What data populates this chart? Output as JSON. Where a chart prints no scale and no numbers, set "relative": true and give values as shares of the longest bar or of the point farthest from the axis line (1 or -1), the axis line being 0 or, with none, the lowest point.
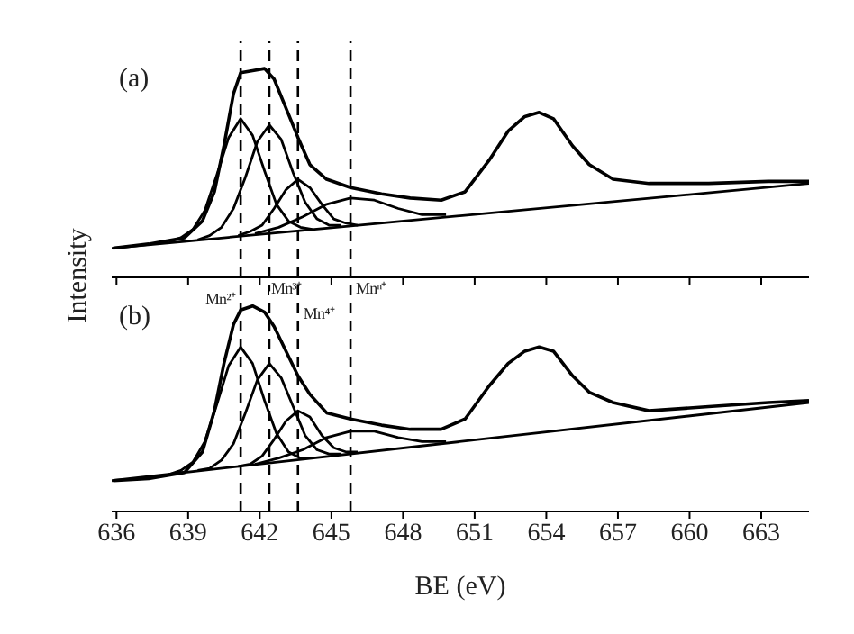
{
  "chart_data": [
    {
      "type": "line",
      "relative": true,
      "ylabel": "Intensity",
      "annotations": [
        "(a)"
      ],
      "xlim": [
        635.8,
        665
      ],
      "xticks": [
        636,
        639,
        642,
        645,
        648,
        651,
        654,
        657,
        660,
        663
      ],
      "tick_labels": false,
      "ref_lines": [
        {
          "axis": "x",
          "value": 641.2,
          "line_style": "dashed",
          "color": "#000000"
        },
        {
          "axis": "x",
          "value": 642.4,
          "line_style": "dashed",
          "color": "#000000"
        },
        {
          "axis": "x",
          "value": 643.6,
          "line_style": "dashed",
          "color": "#000000"
        },
        {
          "axis": "x",
          "value": 645.8,
          "line_style": "dashed",
          "color": "#000000"
        }
      ],
      "series": [
        {
          "color": "#000000",
          "x": [
            635.86,
            637.35,
            638.85,
            639.6,
            640.1,
            640.5,
            640.9,
            641.2,
            641.7,
            642.2,
            642.6,
            643.1,
            643.6,
            644.1,
            644.8,
            645.8,
            647.1,
            648.3,
            649.6,
            650.6,
            651.6,
            652.4,
            653.1,
            653.7,
            654.3,
            655.1,
            655.8,
            656.8,
            658.3,
            660.8,
            663.3,
            665
          ],
          "values": [
            0.14,
            0.16,
            0.19,
            0.27,
            0.41,
            0.63,
            0.88,
            0.98,
            0.99,
            1,
            0.95,
            0.81,
            0.67,
            0.54,
            0.47,
            0.43,
            0.4,
            0.38,
            0.37,
            0.41,
            0.56,
            0.7,
            0.77,
            0.79,
            0.76,
            0.63,
            0.54,
            0.47,
            0.45,
            0.45,
            0.46,
            0.46
          ]
        },
        {
          "color": "#000000",
          "x": [
            638.2,
            638.7,
            639.2,
            639.7,
            640.2,
            640.7,
            641.2,
            641.7,
            642.2,
            642.7,
            643.2,
            643.7,
            644.2
          ],
          "values": [
            0.17,
            0.19,
            0.23,
            0.32,
            0.49,
            0.67,
            0.76,
            0.68,
            0.51,
            0.35,
            0.27,
            0.24,
            0.23
          ]
        },
        {
          "color": "#000000",
          "x": [
            639.4,
            639.9,
            640.4,
            640.9,
            641.4,
            641.9,
            642.4,
            642.9,
            643.4,
            643.9,
            644.4,
            644.9,
            645.4
          ],
          "values": [
            0.18,
            0.2,
            0.24,
            0.33,
            0.48,
            0.65,
            0.73,
            0.66,
            0.5,
            0.36,
            0.28,
            0.25,
            0.25
          ]
        },
        {
          "color": "#000000",
          "x": [
            641.1,
            641.6,
            642.1,
            642.6,
            643.1,
            643.6,
            644.1,
            644.6,
            645.1,
            645.6,
            646.1
          ],
          "values": [
            0.2,
            0.22,
            0.25,
            0.33,
            0.42,
            0.47,
            0.43,
            0.35,
            0.28,
            0.26,
            0.25
          ]
        },
        {
          "color": "#000000",
          "x": [
            641.8,
            642.8,
            643.8,
            644.8,
            645.8,
            646.8,
            647.8,
            648.8,
            649.8
          ],
          "values": [
            0.21,
            0.24,
            0.29,
            0.35,
            0.38,
            0.37,
            0.33,
            0.3,
            0.3
          ]
        },
        {
          "color": "#000000",
          "x": [
            635.8,
            665
          ],
          "values": [
            0.14,
            0.45
          ]
        }
      ]
    },
    {
      "type": "line",
      "relative": true,
      "xlabel": "BE (eV)",
      "annotations": [
        "(b)"
      ],
      "xlim": [
        635.8,
        665
      ],
      "xticks": [
        636,
        639,
        642,
        645,
        648,
        651,
        654,
        657,
        660,
        663
      ],
      "tick_labels": "x",
      "ref_lines": [
        {
          "axis": "x",
          "value": 641.2,
          "label": "Mn²⁺",
          "line_style": "dashed",
          "color": "#000000"
        },
        {
          "axis": "x",
          "value": 642.4,
          "label": "Mn³⁺",
          "line_style": "dashed",
          "color": "#000000"
        },
        {
          "axis": "x",
          "value": 643.6,
          "label": "Mn⁴⁺",
          "line_style": "dashed",
          "color": "#000000"
        },
        {
          "axis": "x",
          "value": 645.8,
          "label": "Mnⁿ⁺",
          "line_style": "dashed",
          "color": "#000000"
        }
      ],
      "series": [
        {
          "color": "#000000",
          "x": [
            635.86,
            637.35,
            638.85,
            639.6,
            640.1,
            640.5,
            640.9,
            641.2,
            641.7,
            642.2,
            642.6,
            643.1,
            643.6,
            644.1,
            644.8,
            645.8,
            647.1,
            648.3,
            649.6,
            650.6,
            651.6,
            652.4,
            653.1,
            653.7,
            654.3,
            655.1,
            655.8,
            656.8,
            658.3,
            660.8,
            663.3,
            665
          ],
          "values": [
            0.15,
            0.16,
            0.19,
            0.29,
            0.49,
            0.72,
            0.91,
            0.98,
            1,
            0.97,
            0.9,
            0.78,
            0.66,
            0.57,
            0.48,
            0.45,
            0.42,
            0.4,
            0.4,
            0.45,
            0.61,
            0.72,
            0.78,
            0.8,
            0.78,
            0.66,
            0.58,
            0.53,
            0.49,
            0.51,
            0.53,
            0.54
          ]
        },
        {
          "color": "#000000",
          "x": [
            638.2,
            638.7,
            639.2,
            639.7,
            640.2,
            640.7,
            641.2,
            641.7,
            642.2,
            642.7,
            643.2,
            643.7,
            644.2
          ],
          "values": [
            0.18,
            0.2,
            0.24,
            0.34,
            0.52,
            0.71,
            0.8,
            0.72,
            0.54,
            0.38,
            0.29,
            0.26,
            0.26
          ]
        },
        {
          "color": "#000000",
          "x": [
            639.4,
            639.9,
            640.4,
            640.9,
            641.4,
            641.9,
            642.4,
            642.9,
            643.4,
            643.9,
            644.4,
            644.9,
            645.4
          ],
          "values": [
            0.2,
            0.21,
            0.25,
            0.33,
            0.48,
            0.64,
            0.72,
            0.65,
            0.51,
            0.37,
            0.3,
            0.28,
            0.28
          ]
        },
        {
          "color": "#000000",
          "x": [
            641.1,
            641.6,
            642.1,
            642.6,
            643.1,
            643.6,
            644.1,
            644.6,
            645.1,
            645.6,
            646.1
          ],
          "values": [
            0.22,
            0.23,
            0.27,
            0.35,
            0.44,
            0.49,
            0.46,
            0.37,
            0.31,
            0.29,
            0.29
          ]
        },
        {
          "color": "#000000",
          "x": [
            641.8,
            642.8,
            643.8,
            644.8,
            645.8,
            646.8,
            647.8,
            648.8,
            649.8
          ],
          "values": [
            0.23,
            0.26,
            0.3,
            0.36,
            0.39,
            0.39,
            0.36,
            0.34,
            0.34
          ]
        },
        {
          "color": "#000000",
          "x": [
            635.8,
            665
          ],
          "values": [
            0.15,
            0.53
          ]
        }
      ]
    }
  ]
}
